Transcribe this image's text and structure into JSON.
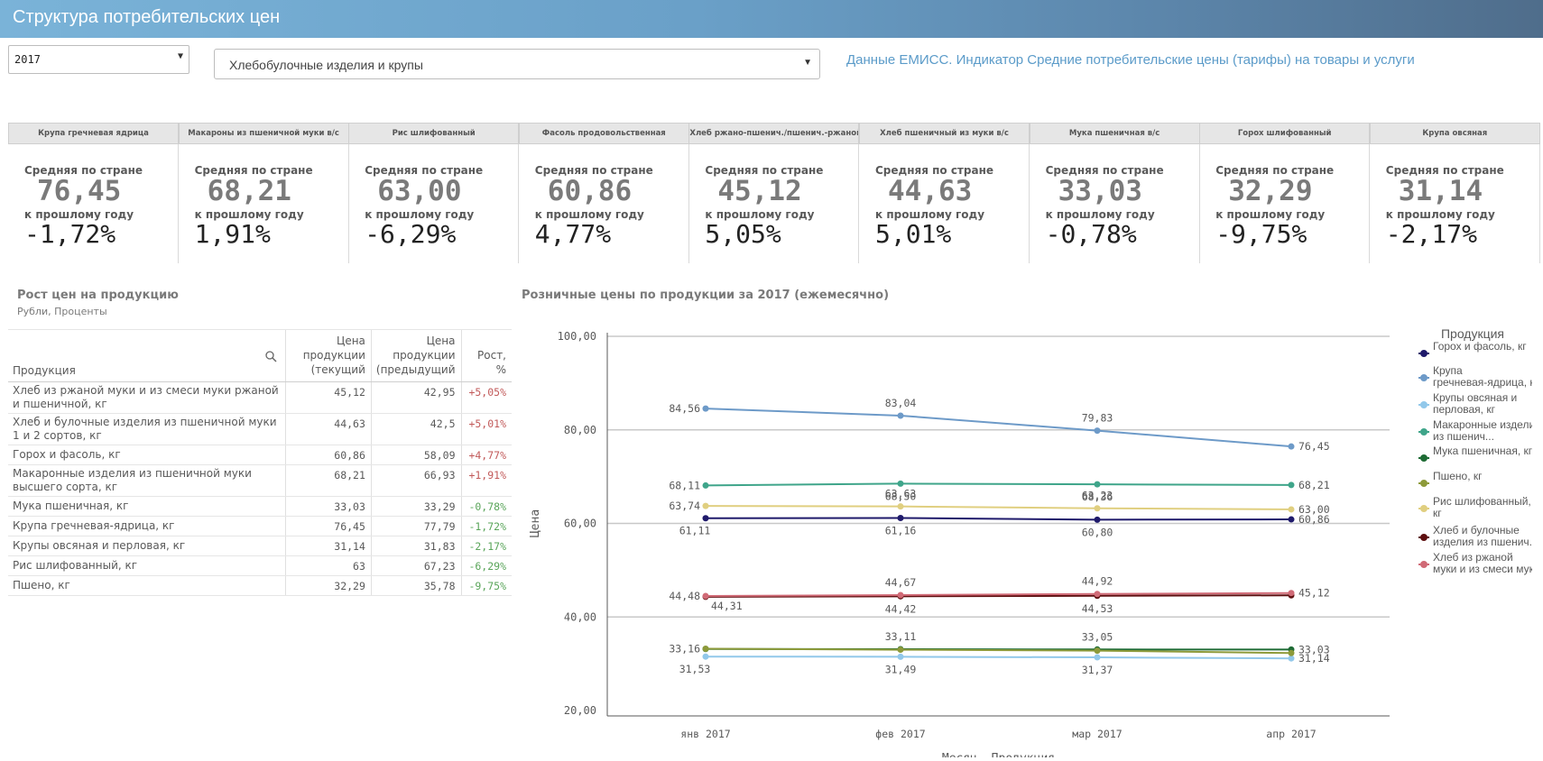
{
  "app": {
    "title": "Структура потребительских цен"
  },
  "filters": {
    "year": "2017",
    "category": "Хлебобулочные изделия и крупы",
    "source_text": "Данные ЕМИСС. Индикатор Средние потребительские цены (тарифы) на товары и услуги"
  },
  "kpi_labels": {
    "avg": "Средняя по стране",
    "yoy": "к прошлому году"
  },
  "kpis": [
    {
      "name": "Крупа гречневая ядрица",
      "avg": "76,45",
      "yoy": "-1,72%"
    },
    {
      "name": "Макароны из пшеничной муки в/с",
      "avg": "68,21",
      "yoy": "1,91%"
    },
    {
      "name": "Рис шлифованный",
      "avg": "63,00",
      "yoy": "-6,29%"
    },
    {
      "name": "Фасоль продовольственная",
      "avg": "60,86",
      "yoy": "4,77%"
    },
    {
      "name": "Хлеб ржано-пшенич./пшенич.-ржаной",
      "avg": "45,12",
      "yoy": "5,05%"
    },
    {
      "name": "Хлеб пшеничный из муки в/с",
      "avg": "44,63",
      "yoy": "5,01%"
    },
    {
      "name": "Мука пшеничная в/с",
      "avg": "33,03",
      "yoy": "-0,78%"
    },
    {
      "name": "Горох шлифованный",
      "avg": "32,29",
      "yoy": "-9,75%"
    },
    {
      "name": "Крупа овсяная",
      "avg": "31,14",
      "yoy": "-2,17%"
    }
  ],
  "table": {
    "title": "Рост цен на продукцию",
    "subtitle": "Рубли, Проценты",
    "headers": {
      "product": "Продукция",
      "cur": "Цена продукции (текущий",
      "prev": "Цена продукции (предыдущий",
      "growth": "Рост, %"
    },
    "rows": [
      {
        "product": "Хлеб из ржаной муки и из смеси муки ржаной и пшеничной, кг",
        "cur": "45,12",
        "prev": "42,95",
        "growth": "+5,05%",
        "dir": "pos"
      },
      {
        "product": "Хлеб и булочные изделия из пшеничной муки 1 и 2 сортов, кг",
        "cur": "44,63",
        "prev": "42,5",
        "growth": "+5,01%",
        "dir": "pos"
      },
      {
        "product": "Горох и фасоль, кг",
        "cur": "60,86",
        "prev": "58,09",
        "growth": "+4,77%",
        "dir": "pos"
      },
      {
        "product": "Макаронные изделия из пшеничной муки высшего сорта, кг",
        "cur": "68,21",
        "prev": "66,93",
        "growth": "+1,91%",
        "dir": "pos"
      },
      {
        "product": "Мука пшеничная, кг",
        "cur": "33,03",
        "prev": "33,29",
        "growth": "-0,78%",
        "dir": "neg"
      },
      {
        "product": "Крупа гречневая-ядрица, кг",
        "cur": "76,45",
        "prev": "77,79",
        "growth": "-1,72%",
        "dir": "neg"
      },
      {
        "product": "Крупы овсяная и перловая, кг",
        "cur": "31,14",
        "prev": "31,83",
        "growth": "-2,17%",
        "dir": "neg"
      },
      {
        "product": "Рис шлифованный, кг",
        "cur": "63",
        "prev": "67,23",
        "growth": "-6,29%",
        "dir": "neg"
      },
      {
        "product": "Пшено, кг",
        "cur": "32,29",
        "prev": "35,78",
        "growth": "-9,75%",
        "dir": "neg"
      }
    ]
  },
  "chart_title": "Розничные цены по продукции за 2017 (ежемесячно)",
  "chart_data": {
    "type": "line",
    "title": "Розничные цены по продукции за 2017 (ежемесячно)",
    "xlabel": "Месяц, Продукция",
    "ylabel": "Цена",
    "legend_title": "Продукция",
    "legend_position": "right",
    "x": [
      "янв 2017",
      "фев 2017",
      "мар 2017",
      "апр 2017"
    ],
    "yticks": [
      "20,00",
      "40,00",
      "60,00",
      "80,00",
      "100,00"
    ],
    "ylim": [
      20,
      100
    ],
    "series": [
      {
        "name": "Горох и фасоль, кг",
        "color": "#1f1a6b",
        "values": [
          61.11,
          61.16,
          60.8,
          60.86
        ]
      },
      {
        "name": "Крупа гречневая-ядрица, кг",
        "color": "#6d9ac8",
        "values": [
          84.56,
          83.04,
          79.83,
          76.45
        ]
      },
      {
        "name": "Крупы овсяная и перловая, кг",
        "color": "#92c8ea",
        "values": [
          31.53,
          31.49,
          31.37,
          31.14
        ]
      },
      {
        "name": "Макаронные изделия из пшенич...",
        "color": "#3fa58a",
        "values": [
          68.11,
          68.5,
          68.36,
          68.21
        ]
      },
      {
        "name": "Мука пшеничная, кг",
        "color": "#1e6b34",
        "values": [
          33.16,
          33.11,
          33.05,
          33.03
        ]
      },
      {
        "name": "Пшено, кг",
        "color": "#8d9a3a",
        "values": [
          33.2,
          33.0,
          32.8,
          32.29
        ]
      },
      {
        "name": "Рис шлифованный, кг",
        "color": "#e0cf80",
        "values": [
          63.74,
          63.63,
          63.23,
          63.0
        ]
      },
      {
        "name": "Хлеб и булочные изделия из пшенич...",
        "color": "#5e0f10",
        "values": [
          44.31,
          44.42,
          44.53,
          44.63
        ]
      },
      {
        "name": "Хлеб из ржаной муки и из смеси муки рж...",
        "color": "#d06a76",
        "values": [
          44.48,
          44.67,
          44.92,
          45.12
        ]
      }
    ],
    "labels": [
      {
        "series": 1,
        "text": [
          "84,56",
          "83,04",
          "79,83",
          "76,45"
        ]
      },
      {
        "series": 3,
        "text": [
          "68,11",
          "68,50",
          "68,36",
          "68,21"
        ]
      },
      {
        "series": 6,
        "text": [
          "63,74",
          "63,63",
          "63,23",
          "63,00"
        ]
      },
      {
        "series": 0,
        "text": [
          "61,11",
          "61,16",
          "60,80",
          "60,86"
        ]
      },
      {
        "series": 8,
        "text": [
          "44,48",
          "44,67",
          "44,92",
          "45,12"
        ]
      },
      {
        "series": 7,
        "text": [
          "44,31",
          "44,42",
          "44,53",
          ""
        ]
      },
      {
        "series": 4,
        "text": [
          "33,16",
          "33,11",
          "33,05",
          "33,03"
        ]
      },
      {
        "series": 2,
        "text": [
          "31,53",
          "31,49",
          "31,37",
          "31,14"
        ]
      }
    ]
  }
}
